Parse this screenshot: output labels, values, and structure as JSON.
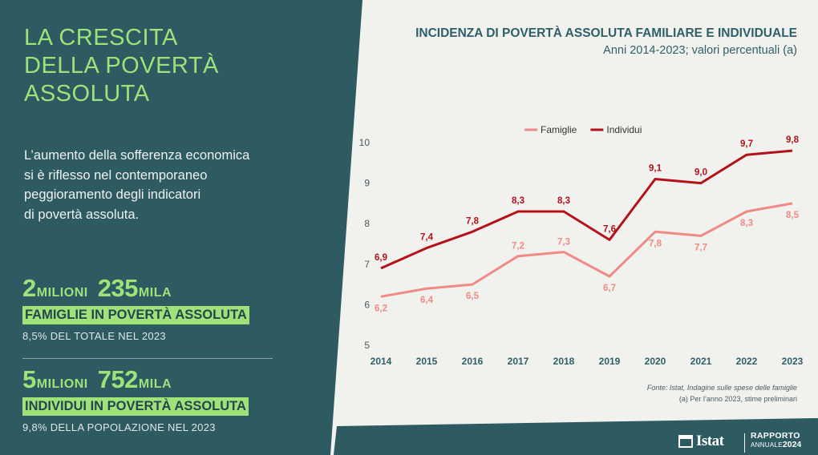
{
  "left_panel": {
    "title_lines": [
      "LA CRESCITA",
      "DELLA POVERTÀ",
      "ASSOLUTA"
    ],
    "intro_lines": [
      "L’aumento della sofferenza economica",
      "si è riflesso nel contemporaneo",
      "peggioramento degli indicatori",
      "di povertà assoluta."
    ],
    "stats": [
      {
        "num1": "2",
        "unit1": "MILIONI",
        "num2": "235",
        "unit2": "MILA",
        "highlight": "FAMIGLIE IN POVERTÀ ASSOLUTA",
        "sub": "8,5% DEL TOTALE NEL 2023"
      },
      {
        "num1": "5",
        "unit1": "MILIONI",
        "num2": "752",
        "unit2": "MILA",
        "highlight": "INDIVIDUI IN POVERTÀ ASSOLUTA",
        "sub": "9,8% DELLA POPOLAZIONE NEL 2023"
      }
    ]
  },
  "chart_header": {
    "title": "INCIDENZA DI POVERTÀ ASSOLUTA FAMILIARE E INDIVIDUALE",
    "subtitle": "Anni 2014-2023; valori percentuali (a)"
  },
  "chart_data": {
    "type": "line",
    "title": "INCIDENZA DI POVERTÀ ASSOLUTA FAMILIARE E INDIVIDUALE",
    "subtitle": "Anni 2014-2023; valori percentuali (a)",
    "x": [
      "2014",
      "2015",
      "2016",
      "2017",
      "2018",
      "2019",
      "2020",
      "2021",
      "2022",
      "2023"
    ],
    "ylim": [
      5,
      10
    ],
    "y_ticks": [
      "5",
      "6",
      "7",
      "8",
      "9",
      "10"
    ],
    "grid": false,
    "legend_position": "top-left",
    "series": [
      {
        "name": "Famiglie",
        "color": "#f08a87",
        "values": [
          6.2,
          6.4,
          6.5,
          7.2,
          7.3,
          6.7,
          7.8,
          7.7,
          8.3,
          8.5
        ],
        "labels": [
          "6,2",
          "6,4",
          "6,5",
          "7,2",
          "7,3",
          "6,7",
          "7,8",
          "7,7",
          "8,3",
          "8,5"
        ]
      },
      {
        "name": "Individui",
        "color": "#b3121b",
        "values": [
          6.9,
          7.4,
          7.8,
          8.3,
          8.3,
          7.6,
          9.1,
          9.0,
          9.7,
          9.8
        ],
        "labels": [
          "6,9",
          "7,4",
          "7,8",
          "8,3",
          "8,3",
          "7,6",
          "9,1",
          "9,0",
          "9,7",
          "9,8"
        ]
      }
    ]
  },
  "notes": {
    "source": "Fonte: Istat, Indagine sulle spese delle famiglie",
    "footnote": "(a) Per l’anno 2023, stime preliminari"
  },
  "footer": {
    "logo": "Istat",
    "report_line1": "RAPPORTO",
    "report_line2": "ANNUALE",
    "report_line3": "2024"
  },
  "colors": {
    "panel": "#2e5a62",
    "accent_green": "#9fe27a",
    "footer_band": "#2e5a62"
  }
}
